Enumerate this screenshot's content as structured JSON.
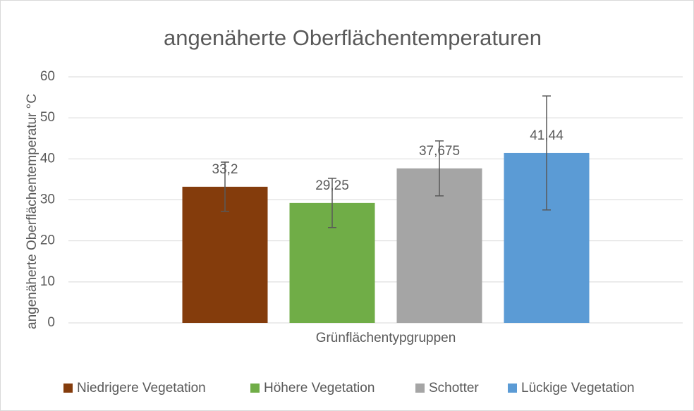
{
  "chart_data": {
    "type": "bar",
    "title": "angenäherte Oberflächentemperaturen",
    "xlabel": "Grünflächentypgruppen",
    "ylabel": "angenäherte Oberflächentemperatur °C",
    "categories": [
      "Grünflächentypgruppen"
    ],
    "series": [
      {
        "name": "Niedrigere Vegetation",
        "color": "#843c0c",
        "values": [
          33.2
        ],
        "value_labels": [
          "33,2"
        ],
        "errors": [
          6
        ]
      },
      {
        "name": "Höhere Vegetation",
        "color": "#70ad47",
        "values": [
          29.25
        ],
        "value_labels": [
          "29,25"
        ],
        "errors": [
          6
        ]
      },
      {
        "name": "Schotter",
        "color": "#a5a5a5",
        "values": [
          37.675
        ],
        "value_labels": [
          "37,675"
        ],
        "errors": [
          6.7
        ]
      },
      {
        "name": "Lückige Vegetation",
        "color": "#5b9bd5",
        "values": [
          41.44
        ],
        "value_labels": [
          "41,44"
        ],
        "errors": [
          13.9
        ]
      }
    ],
    "ylim": [
      0,
      60
    ],
    "yticks": [
      0,
      10,
      20,
      30,
      40,
      50,
      60
    ],
    "grid": true,
    "legend": "bottom"
  }
}
